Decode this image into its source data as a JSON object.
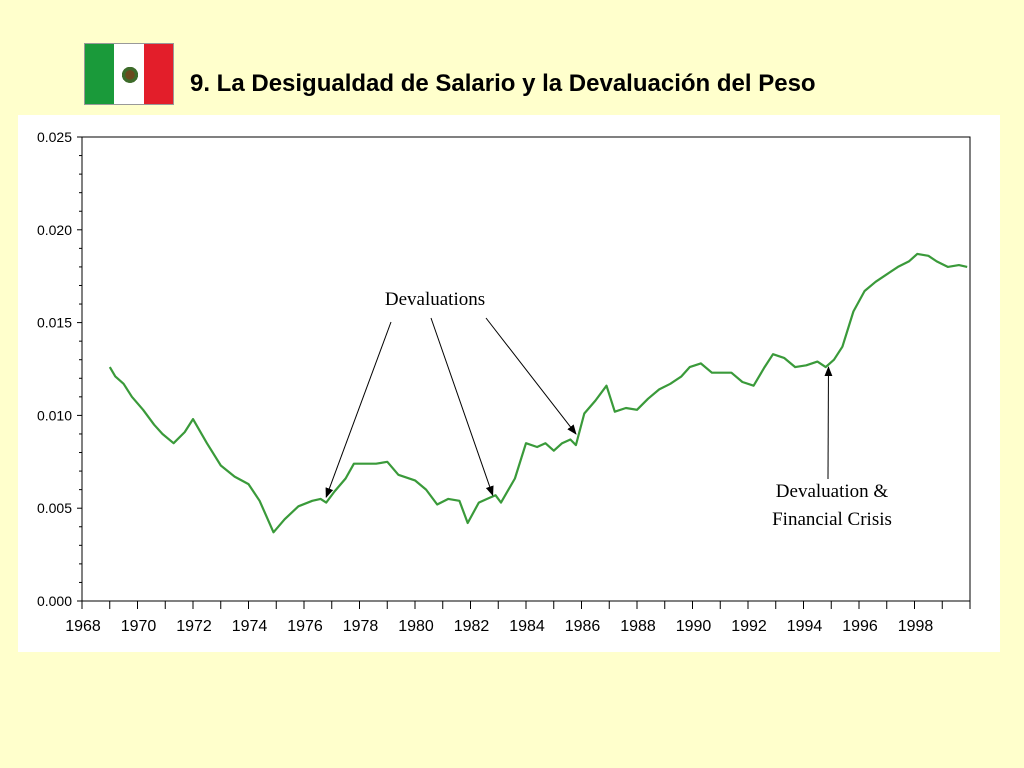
{
  "slide": {
    "title": "9.  La Desigualdad de Salario y la Devaluación del Peso",
    "flag_icon": "mexico-flag-icon",
    "colors": {
      "background": "#ffffcc",
      "line": "#3a9a3a",
      "flag_green": "#1a9a3a",
      "flag_white": "#ffffff",
      "flag_red": "#e31e2a"
    }
  },
  "chart_data": {
    "type": "line",
    "title": "",
    "xlabel": "",
    "ylabel": "",
    "xlim": [
      1968,
      2000
    ],
    "ylim": [
      0,
      0.025
    ],
    "grid": false,
    "legend": "none",
    "ytick_labels": [
      "0.000",
      "0.005",
      "0.010",
      "0.015",
      "0.020",
      "0.025"
    ],
    "ytick_values": [
      0,
      0.005,
      0.01,
      0.015,
      0.02,
      0.025
    ],
    "xtick_labels": [
      "1968",
      "1970",
      "1972",
      "1974",
      "1976",
      "1978",
      "1980",
      "1982",
      "1984",
      "1986",
      "1988",
      "1990",
      "1992",
      "1994",
      "1996",
      "1998"
    ],
    "xtick_values": [
      1968,
      1970,
      1972,
      1974,
      1976,
      1978,
      1980,
      1982,
      1984,
      1986,
      1988,
      1990,
      1992,
      1994,
      1996,
      1998
    ],
    "series": [
      {
        "x": [
          1969.0,
          1969.2,
          1969.5,
          1969.8,
          1970.2,
          1970.6,
          1970.9,
          1971.3,
          1971.7,
          1972.0,
          1972.5,
          1973.0,
          1973.5,
          1974.0,
          1974.4,
          1974.9,
          1975.3,
          1975.8,
          1976.3,
          1976.6,
          1976.8,
          1977.1,
          1977.5,
          1977.8,
          1978.2,
          1978.6,
          1979.0,
          1979.4,
          1980.0,
          1980.4,
          1980.8,
          1981.2,
          1981.6,
          1981.9,
          1982.3,
          1982.6,
          1982.9,
          1983.1,
          1983.6,
          1984.0,
          1984.4,
          1984.7,
          1985.0,
          1985.3,
          1985.6,
          1985.8,
          1986.1,
          1986.5,
          1986.9,
          1987.2,
          1987.6,
          1988.0,
          1988.4,
          1988.8,
          1989.2,
          1989.6,
          1989.9,
          1990.3,
          1990.7,
          1991.0,
          1991.4,
          1991.8,
          1992.2,
          1992.6,
          1992.9,
          1993.3,
          1993.7,
          1994.1,
          1994.5,
          1994.8,
          1995.1,
          1995.4,
          1995.8,
          1996.2,
          1996.6,
          1997.0,
          1997.4,
          1997.8,
          1998.1,
          1998.5,
          1998.8,
          1999.2,
          1999.6,
          1999.9
        ],
        "values": [
          0.0126,
          0.0121,
          0.0117,
          0.011,
          0.0103,
          0.0095,
          0.009,
          0.0085,
          0.0091,
          0.0098,
          0.0085,
          0.0073,
          0.0067,
          0.0063,
          0.0054,
          0.0037,
          0.0044,
          0.0051,
          0.0054,
          0.0055,
          0.0053,
          0.0059,
          0.0066,
          0.0074,
          0.0074,
          0.0074,
          0.0075,
          0.0068,
          0.0065,
          0.006,
          0.0052,
          0.0055,
          0.0054,
          0.0042,
          0.0053,
          0.0055,
          0.0057,
          0.0053,
          0.0066,
          0.0085,
          0.0083,
          0.0085,
          0.0081,
          0.0085,
          0.0087,
          0.0084,
          0.0101,
          0.0108,
          0.0116,
          0.0102,
          0.0104,
          0.0103,
          0.0109,
          0.0114,
          0.0117,
          0.0121,
          0.0126,
          0.0128,
          0.0123,
          0.0123,
          0.0123,
          0.0118,
          0.0116,
          0.0126,
          0.0133,
          0.0131,
          0.0126,
          0.0127,
          0.0129,
          0.0126,
          0.013,
          0.0137,
          0.0156,
          0.0167,
          0.0172,
          0.0176,
          0.018,
          0.0183,
          0.0187,
          0.0186,
          0.0183,
          0.018,
          0.0181,
          0.018
        ]
      }
    ],
    "annotations": [
      {
        "text": "Devaluations",
        "targets": [
          [
            1976.8,
            0.0056
          ],
          [
            1982.8,
            0.0057
          ],
          [
            1985.8,
            0.009
          ]
        ]
      },
      {
        "text": "Devaluation &",
        "text2": "Financial Crisis",
        "targets": [
          [
            1994.9,
            0.0126
          ]
        ]
      }
    ]
  }
}
